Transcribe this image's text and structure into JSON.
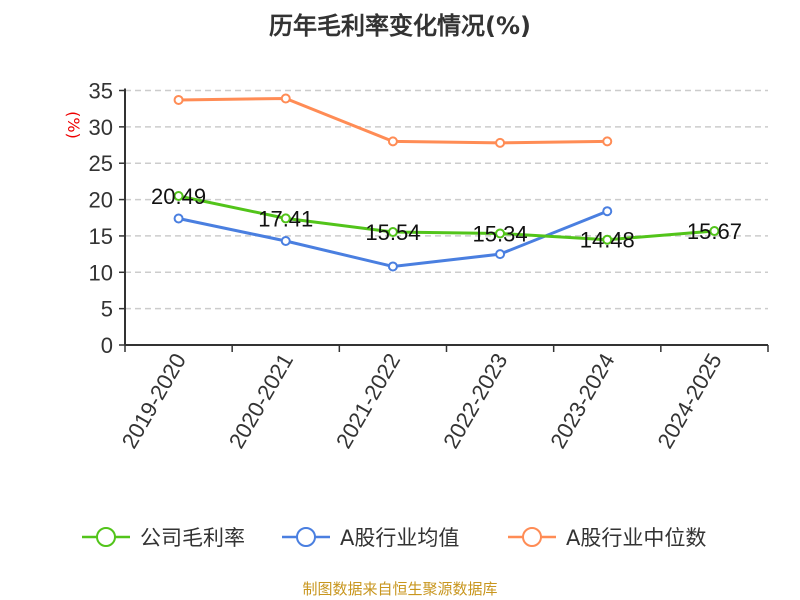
{
  "chart_data": {
    "type": "line",
    "title": "历年毛利率变化情况(%)",
    "ylabel": "(%)",
    "xlabel": "",
    "ylim": [
      0,
      35
    ],
    "yticks": [
      0,
      5,
      10,
      15,
      20,
      25,
      30,
      35
    ],
    "grid": true,
    "legend_position": "bottom",
    "categories": [
      "2019-2020",
      "2020-2021",
      "2021-2022",
      "2022-2023",
      "2023-2024",
      "2024-2025"
    ],
    "series": [
      {
        "name": "公司毛利率",
        "color": "#52c41a",
        "values": [
          20.49,
          17.41,
          15.54,
          15.34,
          14.48,
          15.67
        ],
        "labels": [
          "20.49",
          "17.41",
          "15.54",
          "15.34",
          "14.48",
          "15.67"
        ]
      },
      {
        "name": "A股行业均值",
        "color": "#4a7fe0",
        "values": [
          17.4,
          14.3,
          10.8,
          12.5,
          18.4,
          null
        ]
      },
      {
        "name": "A股行业中位数",
        "color": "#ff8c55",
        "values": [
          33.7,
          33.9,
          28.0,
          27.8,
          28.0,
          null
        ]
      }
    ]
  },
  "footer": "制图数据来自恒生聚源数据库"
}
